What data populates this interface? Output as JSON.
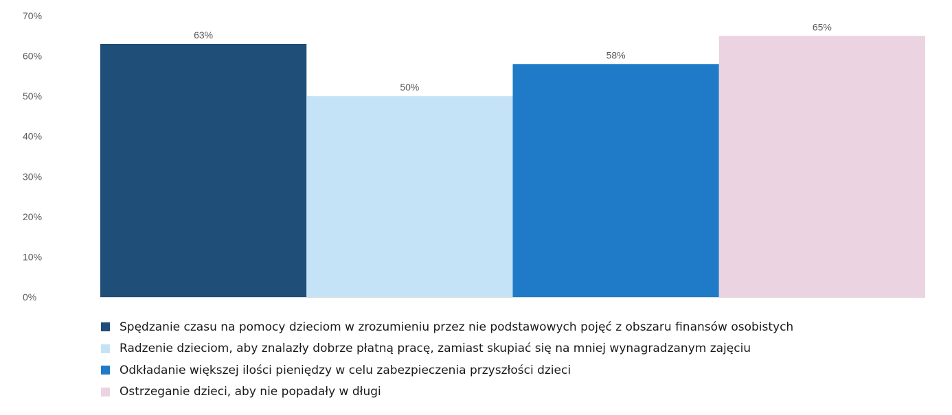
{
  "chart_data": {
    "type": "bar",
    "title": "",
    "xlabel": "",
    "ylabel": "",
    "ylim": [
      0,
      70
    ],
    "yticks": [
      "0%",
      "10%",
      "20%",
      "30%",
      "40%",
      "50%",
      "60%",
      "70%"
    ],
    "grid": false,
    "legend_position": "bottom",
    "series": [
      {
        "name": "Spędzanie czasu na pomocy dzieciom w zrozumieniu przez nie podstawowych pojęć z obszaru finansów osobistych",
        "value": 63,
        "label": "63%",
        "color": "#1f4e79"
      },
      {
        "name": "Radzenie dzieciom, aby znalazły dobrze płatną pracę, zamiast skupiać się na mniej wynagradzanym zajęciu",
        "value": 50,
        "label": "50%",
        "color": "#c5e3f6"
      },
      {
        "name": "Odkładanie większej ilości pieniędzy w celu zabezpieczenia przyszłości dzieci",
        "value": 58,
        "label": "58%",
        "color": "#1f7bc8"
      },
      {
        "name": "Ostrzeganie dzieci, aby nie popadały w długi",
        "value": 65,
        "label": "65%",
        "color": "#ecd3e1"
      }
    ]
  }
}
